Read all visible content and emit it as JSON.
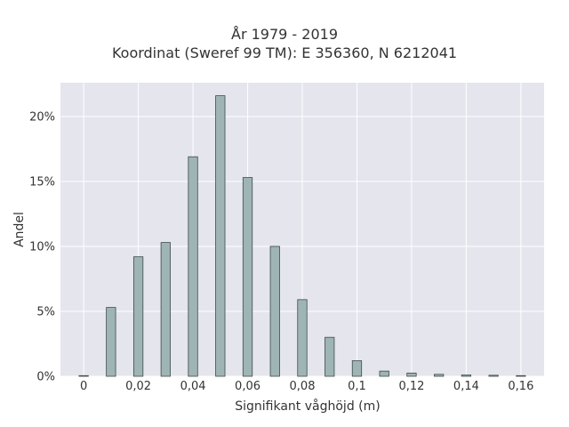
{
  "chart_data": {
    "type": "bar",
    "title_line1": "År 1979 - 2019",
    "title_line2": "Koordinat (Sweref 99 TM): E 356360, N 6212041",
    "xlabel": "Signifikant våghöjd (m)",
    "ylabel": "Andel",
    "x": [
      0,
      0.01,
      0.02,
      0.03,
      0.04,
      0.05,
      0.06,
      0.07,
      0.08,
      0.09,
      0.1,
      0.11,
      0.12,
      0.13,
      0.14,
      0.15,
      0.16
    ],
    "values": [
      0.05,
      5.3,
      9.2,
      10.3,
      16.9,
      21.6,
      15.3,
      10.0,
      5.9,
      3.0,
      1.2,
      0.4,
      0.25,
      0.15,
      0.1,
      0.08,
      0.05
    ],
    "xticks": [
      0,
      0.02,
      0.04,
      0.06,
      0.08,
      0.1,
      0.12,
      0.14,
      0.16
    ],
    "xtick_labels": [
      "0",
      "0,02",
      "0,04",
      "0,06",
      "0,08",
      "0,1",
      "0,12",
      "0,14",
      "0,16"
    ],
    "yticks": [
      0,
      5,
      10,
      15,
      20
    ],
    "ytick_labels": [
      "0%",
      "5%",
      "10%",
      "15%",
      "20%"
    ],
    "xlim": [
      -0.0085,
      0.1685
    ],
    "ylim": [
      0,
      22.6
    ],
    "grid": true,
    "colors": {
      "plot_bg": "#e5e5ee",
      "grid": "#ffffff",
      "bar_fill": "#9fb4b4",
      "bar_stroke": "#3d4a4a"
    }
  }
}
